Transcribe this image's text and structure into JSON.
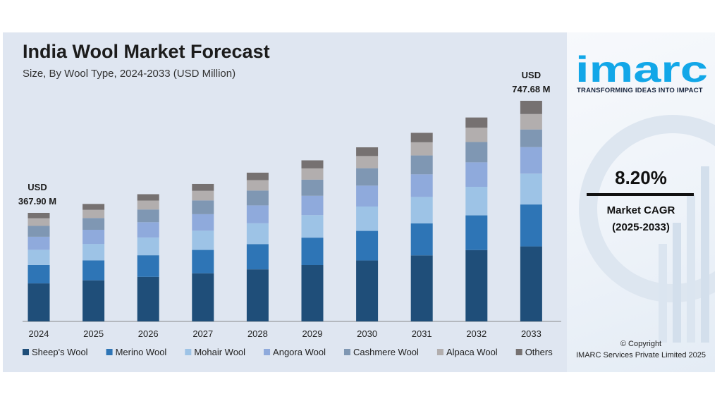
{
  "chart_data": {
    "type": "bar",
    "stacked": true,
    "title": "India Wool Market Forecast",
    "subtitle": "Size, By Wool Type, 2024-2033 (USD Million)",
    "categories": [
      "2024",
      "2025",
      "2026",
      "2027",
      "2028",
      "2029",
      "2030",
      "2031",
      "2032",
      "2033"
    ],
    "totals": [
      367.9,
      398,
      431,
      466,
      504,
      546,
      590,
      639,
      691,
      747.68
    ],
    "series": [
      {
        "name": "Sheep's Wool",
        "color": "#1f4e79",
        "values": [
          128.8,
          139.3,
          150.9,
          163.1,
          176.4,
          191.1,
          206.5,
          223.7,
          241.9,
          254.2
        ]
      },
      {
        "name": "Merino Wool",
        "color": "#2e75b6",
        "values": [
          62.5,
          67.7,
          73.3,
          79.2,
          85.7,
          92.8,
          100.3,
          108.6,
          117.5,
          142.1
        ]
      },
      {
        "name": "Mohair Wool",
        "color": "#9dc3e6",
        "values": [
          51.5,
          55.7,
          60.3,
          65.2,
          70.6,
          76.4,
          82.6,
          89.5,
          96.7,
          104.7
        ]
      },
      {
        "name": "Angora Wool",
        "color": "#8faadc",
        "values": [
          44.1,
          47.8,
          51.7,
          55.9,
          60.5,
          65.5,
          70.8,
          76.7,
          82.9,
          89.7
        ]
      },
      {
        "name": "Cashmere Wool",
        "color": "#7f97b3",
        "values": [
          36.8,
          39.8,
          43.1,
          46.6,
          50.4,
          54.6,
          59.0,
          63.9,
          69.1,
          59.8
        ]
      },
      {
        "name": "Alpaca Wool",
        "color": "#b2aeae",
        "values": [
          25.8,
          27.9,
          30.2,
          32.6,
          35.3,
          38.2,
          41.3,
          44.7,
          48.4,
          52.3
        ]
      },
      {
        "name": "Others",
        "color": "#767171",
        "values": [
          18.4,
          19.9,
          21.6,
          23.3,
          25.2,
          27.3,
          29.5,
          32.0,
          34.6,
          44.9
        ]
      }
    ],
    "annotations": {
      "first": {
        "currency": "USD",
        "value": "367.90 M"
      },
      "last": {
        "currency": "USD",
        "value": "747.68 M"
      }
    },
    "ylim": [
      0,
      747.68
    ],
    "legend_position": "bottom",
    "grid": false
  },
  "brand": {
    "logo_text": "imarc",
    "logo_color": "#12a7e8",
    "tagline": "TRANSFORMING IDEAS INTO IMPACT"
  },
  "stats": {
    "cagr_value": "8.20%",
    "cagr_label": "Market CAGR",
    "cagr_period": "(2025-2033)"
  },
  "footer": {
    "copyright": "© Copyright",
    "company": "IMARC Services Private Limited 2025"
  }
}
